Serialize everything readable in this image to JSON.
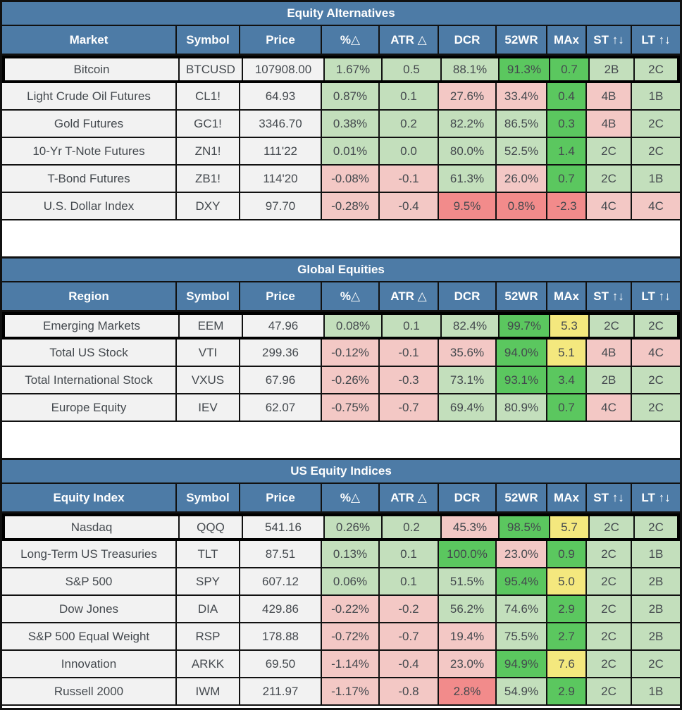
{
  "colors": {
    "header_blue": "#4d7ba6",
    "row_bg": "#f2f2f2",
    "border_black": "#111111",
    "text_dark": "#44494e",
    "lg": "#c3dfbc",
    "g": "#5bc75f",
    "y": "#f4e87e",
    "p": "#f3c8c5",
    "r": "#f28b8b"
  },
  "tables": [
    {
      "title": "Equity Alternatives",
      "columns": [
        "Market",
        "Symbol",
        "Price",
        "%△",
        "ATR △",
        "DCR",
        "52WR",
        "MAx",
        "ST ↑↓",
        "LT ↑↓"
      ],
      "rows": [
        {
          "name": "Bitcoin",
          "symbol": "BTCUSD",
          "price": "107908.00",
          "highlighted": true,
          "metrics": [
            {
              "v": "1.67%",
              "c": "lg"
            },
            {
              "v": "0.5",
              "c": "lg"
            },
            {
              "v": "88.1%",
              "c": "lg"
            },
            {
              "v": "91.3%",
              "c": "g"
            },
            {
              "v": "0.7",
              "c": "g"
            },
            {
              "v": "2B",
              "c": "lg"
            },
            {
              "v": "2C",
              "c": "lg"
            }
          ]
        },
        {
          "name": "Light Crude Oil Futures",
          "symbol": "CL1!",
          "price": "64.93",
          "highlighted": false,
          "metrics": [
            {
              "v": "0.87%",
              "c": "lg"
            },
            {
              "v": "0.1",
              "c": "lg"
            },
            {
              "v": "27.6%",
              "c": "p"
            },
            {
              "v": "33.4%",
              "c": "p"
            },
            {
              "v": "0.4",
              "c": "g"
            },
            {
              "v": "4B",
              "c": "p"
            },
            {
              "v": "1B",
              "c": "lg"
            }
          ]
        },
        {
          "name": "Gold Futures",
          "symbol": "GC1!",
          "price": "3346.70",
          "highlighted": false,
          "metrics": [
            {
              "v": "0.38%",
              "c": "lg"
            },
            {
              "v": "0.2",
              "c": "lg"
            },
            {
              "v": "82.2%",
              "c": "lg"
            },
            {
              "v": "86.5%",
              "c": "lg"
            },
            {
              "v": "0.3",
              "c": "g"
            },
            {
              "v": "4B",
              "c": "p"
            },
            {
              "v": "2C",
              "c": "lg"
            }
          ]
        },
        {
          "name": "10-Yr T-Note Futures",
          "symbol": "ZN1!",
          "price": "111'22",
          "highlighted": false,
          "metrics": [
            {
              "v": "0.01%",
              "c": "lg"
            },
            {
              "v": "0.0",
              "c": "lg"
            },
            {
              "v": "80.0%",
              "c": "lg"
            },
            {
              "v": "52.5%",
              "c": "lg"
            },
            {
              "v": "1.4",
              "c": "g"
            },
            {
              "v": "2C",
              "c": "lg"
            },
            {
              "v": "2C",
              "c": "lg"
            }
          ]
        },
        {
          "name": "T-Bond Futures",
          "symbol": "ZB1!",
          "price": "114'20",
          "highlighted": false,
          "metrics": [
            {
              "v": "-0.08%",
              "c": "p"
            },
            {
              "v": "-0.1",
              "c": "p"
            },
            {
              "v": "61.3%",
              "c": "lg"
            },
            {
              "v": "26.0%",
              "c": "p"
            },
            {
              "v": "0.7",
              "c": "g"
            },
            {
              "v": "2C",
              "c": "lg"
            },
            {
              "v": "1B",
              "c": "lg"
            }
          ]
        },
        {
          "name": "U.S. Dollar Index",
          "symbol": "DXY",
          "price": "97.70",
          "highlighted": false,
          "metrics": [
            {
              "v": "-0.28%",
              "c": "p"
            },
            {
              "v": "-0.4",
              "c": "p"
            },
            {
              "v": "9.5%",
              "c": "r"
            },
            {
              "v": "0.8%",
              "c": "r"
            },
            {
              "v": "-2.3",
              "c": "r"
            },
            {
              "v": "4C",
              "c": "p"
            },
            {
              "v": "4C",
              "c": "p"
            }
          ]
        }
      ]
    },
    {
      "title": "Global Equities",
      "columns": [
        "Region",
        "Symbol",
        "Price",
        "%△",
        "ATR △",
        "DCR",
        "52WR",
        "MAx",
        "ST ↑↓",
        "LT ↑↓"
      ],
      "rows": [
        {
          "name": "Emerging Markets",
          "symbol": "EEM",
          "price": "47.96",
          "highlighted": true,
          "metrics": [
            {
              "v": "0.08%",
              "c": "lg"
            },
            {
              "v": "0.1",
              "c": "lg"
            },
            {
              "v": "82.4%",
              "c": "lg"
            },
            {
              "v": "99.7%",
              "c": "g"
            },
            {
              "v": "5.3",
              "c": "y"
            },
            {
              "v": "2C",
              "c": "lg"
            },
            {
              "v": "2C",
              "c": "lg"
            }
          ]
        },
        {
          "name": "Total US Stock",
          "symbol": "VTI",
          "price": "299.36",
          "highlighted": false,
          "metrics": [
            {
              "v": "-0.12%",
              "c": "p"
            },
            {
              "v": "-0.1",
              "c": "p"
            },
            {
              "v": "35.6%",
              "c": "p"
            },
            {
              "v": "94.0%",
              "c": "g"
            },
            {
              "v": "5.1",
              "c": "y"
            },
            {
              "v": "4B",
              "c": "p"
            },
            {
              "v": "4C",
              "c": "p"
            }
          ]
        },
        {
          "name": "Total International Stock",
          "symbol": "VXUS",
          "price": "67.96",
          "highlighted": false,
          "metrics": [
            {
              "v": "-0.26%",
              "c": "p"
            },
            {
              "v": "-0.3",
              "c": "p"
            },
            {
              "v": "73.1%",
              "c": "lg"
            },
            {
              "v": "93.1%",
              "c": "g"
            },
            {
              "v": "3.4",
              "c": "g"
            },
            {
              "v": "2B",
              "c": "lg"
            },
            {
              "v": "2C",
              "c": "lg"
            }
          ]
        },
        {
          "name": "Europe Equity",
          "symbol": "IEV",
          "price": "62.07",
          "highlighted": false,
          "metrics": [
            {
              "v": "-0.75%",
              "c": "p"
            },
            {
              "v": "-0.7",
              "c": "p"
            },
            {
              "v": "69.4%",
              "c": "lg"
            },
            {
              "v": "80.9%",
              "c": "lg"
            },
            {
              "v": "0.7",
              "c": "g"
            },
            {
              "v": "4C",
              "c": "p"
            },
            {
              "v": "2C",
              "c": "lg"
            }
          ]
        }
      ]
    },
    {
      "title": "US Equity Indices",
      "columns": [
        "Equity Index",
        "Symbol",
        "Price",
        "%△",
        "ATR △",
        "DCR",
        "52WR",
        "MAx",
        "ST ↑↓",
        "LT ↑↓"
      ],
      "rows": [
        {
          "name": "Nasdaq",
          "symbol": "QQQ",
          "price": "541.16",
          "highlighted": true,
          "metrics": [
            {
              "v": "0.26%",
              "c": "lg"
            },
            {
              "v": "0.2",
              "c": "lg"
            },
            {
              "v": "45.3%",
              "c": "p"
            },
            {
              "v": "98.5%",
              "c": "g"
            },
            {
              "v": "5.7",
              "c": "y"
            },
            {
              "v": "2C",
              "c": "lg"
            },
            {
              "v": "2C",
              "c": "lg"
            }
          ]
        },
        {
          "name": "Long-Term US Treasuries",
          "symbol": "TLT",
          "price": "87.51",
          "highlighted": false,
          "metrics": [
            {
              "v": "0.13%",
              "c": "lg"
            },
            {
              "v": "0.1",
              "c": "lg"
            },
            {
              "v": "100.0%",
              "c": "g"
            },
            {
              "v": "23.0%",
              "c": "p"
            },
            {
              "v": "0.9",
              "c": "g"
            },
            {
              "v": "2C",
              "c": "lg"
            },
            {
              "v": "1B",
              "c": "lg"
            }
          ]
        },
        {
          "name": "S&P 500",
          "symbol": "SPY",
          "price": "607.12",
          "highlighted": false,
          "metrics": [
            {
              "v": "0.06%",
              "c": "lg"
            },
            {
              "v": "0.1",
              "c": "lg"
            },
            {
              "v": "51.5%",
              "c": "lg"
            },
            {
              "v": "95.4%",
              "c": "g"
            },
            {
              "v": "5.0",
              "c": "y"
            },
            {
              "v": "2C",
              "c": "lg"
            },
            {
              "v": "2B",
              "c": "lg"
            }
          ]
        },
        {
          "name": "Dow Jones",
          "symbol": "DIA",
          "price": "429.86",
          "highlighted": false,
          "metrics": [
            {
              "v": "-0.22%",
              "c": "p"
            },
            {
              "v": "-0.2",
              "c": "p"
            },
            {
              "v": "56.2%",
              "c": "lg"
            },
            {
              "v": "74.6%",
              "c": "lg"
            },
            {
              "v": "2.9",
              "c": "g"
            },
            {
              "v": "2C",
              "c": "lg"
            },
            {
              "v": "2B",
              "c": "lg"
            }
          ]
        },
        {
          "name": "S&P 500 Equal Weight",
          "symbol": "RSP",
          "price": "178.88",
          "highlighted": false,
          "metrics": [
            {
              "v": "-0.72%",
              "c": "p"
            },
            {
              "v": "-0.7",
              "c": "p"
            },
            {
              "v": "19.4%",
              "c": "p"
            },
            {
              "v": "75.5%",
              "c": "lg"
            },
            {
              "v": "2.7",
              "c": "g"
            },
            {
              "v": "2C",
              "c": "lg"
            },
            {
              "v": "2B",
              "c": "lg"
            }
          ]
        },
        {
          "name": "Innovation",
          "symbol": "ARKK",
          "price": "69.50",
          "highlighted": false,
          "metrics": [
            {
              "v": "-1.14%",
              "c": "p"
            },
            {
              "v": "-0.4",
              "c": "p"
            },
            {
              "v": "23.0%",
              "c": "p"
            },
            {
              "v": "94.9%",
              "c": "g"
            },
            {
              "v": "7.6",
              "c": "y"
            },
            {
              "v": "2C",
              "c": "lg"
            },
            {
              "v": "2C",
              "c": "lg"
            }
          ]
        },
        {
          "name": "Russell 2000",
          "symbol": "IWM",
          "price": "211.97",
          "highlighted": false,
          "metrics": [
            {
              "v": "-1.17%",
              "c": "p"
            },
            {
              "v": "-0.8",
              "c": "p"
            },
            {
              "v": "2.8%",
              "c": "r"
            },
            {
              "v": "54.9%",
              "c": "lg"
            },
            {
              "v": "2.9",
              "c": "g"
            },
            {
              "v": "2C",
              "c": "lg"
            },
            {
              "v": "1B",
              "c": "lg"
            }
          ]
        }
      ]
    }
  ]
}
